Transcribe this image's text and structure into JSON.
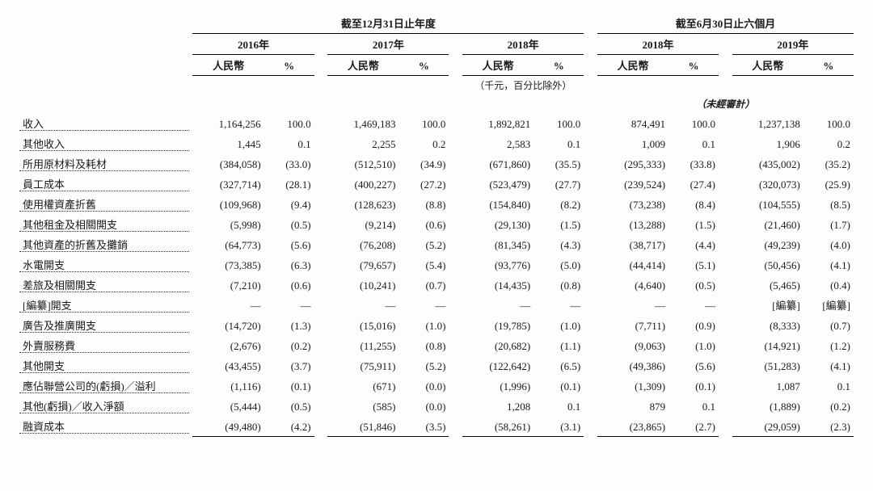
{
  "headers": {
    "period_annual": "截至12月31日止年度",
    "period_half": "截至6月30日止六個月",
    "y2016": "2016年",
    "y2017": "2017年",
    "y2018": "2018年",
    "y2018h": "2018年",
    "y2019h": "2019年",
    "rmb": "人民幣",
    "pct": "%",
    "unit_note": "（千元，百分比除外）",
    "unaudited": "（未經審計）"
  },
  "rows": [
    {
      "label": "收入",
      "bold": true,
      "underline": false,
      "v": [
        "1,164,256",
        "100.0",
        "1,469,183",
        "100.0",
        "1,892,821",
        "100.0",
        "874,491",
        "100.0",
        "1,237,138",
        "100.0"
      ]
    },
    {
      "label": "其他收入",
      "v": [
        "1,445",
        "0.1",
        "2,255",
        "0.2",
        "2,583",
        "0.1",
        "1,009",
        "0.1",
        "1,906",
        "0.2"
      ]
    },
    {
      "label": "所用原材料及耗材",
      "v": [
        "(384,058)",
        "(33.0)",
        "(512,510)",
        "(34.9)",
        "(671,860)",
        "(35.5)",
        "(295,333)",
        "(33.8)",
        "(435,002)",
        "(35.2)"
      ]
    },
    {
      "label": "員工成本",
      "v": [
        "(327,714)",
        "(28.1)",
        "(400,227)",
        "(27.2)",
        "(523,479)",
        "(27.7)",
        "(239,524)",
        "(27.4)",
        "(320,073)",
        "(25.9)"
      ]
    },
    {
      "label": "使用權資產折舊",
      "v": [
        "(109,968)",
        "(9.4)",
        "(128,623)",
        "(8.8)",
        "(154,840)",
        "(8.2)",
        "(73,238)",
        "(8.4)",
        "(104,555)",
        "(8.5)"
      ]
    },
    {
      "label": "其他租金及相關開支",
      "v": [
        "(5,998)",
        "(0.5)",
        "(9,214)",
        "(0.6)",
        "(29,130)",
        "(1.5)",
        "(13,288)",
        "(1.5)",
        "(21,460)",
        "(1.7)"
      ]
    },
    {
      "label": "其他資產的折舊及攤銷",
      "v": [
        "(64,773)",
        "(5.6)",
        "(76,208)",
        "(5.2)",
        "(81,345)",
        "(4.3)",
        "(38,717)",
        "(4.4)",
        "(49,239)",
        "(4.0)"
      ]
    },
    {
      "label": "水電開支",
      "v": [
        "(73,385)",
        "(6.3)",
        "(79,657)",
        "(5.4)",
        "(93,776)",
        "(5.0)",
        "(44,414)",
        "(5.1)",
        "(50,456)",
        "(4.1)"
      ]
    },
    {
      "label": "差旅及相關開支",
      "v": [
        "(7,210)",
        "(0.6)",
        "(10,241)",
        "(0.7)",
        "(14,435)",
        "(0.8)",
        "(4,640)",
        "(0.5)",
        "(5,465)",
        "(0.4)"
      ]
    },
    {
      "label": "[編纂]開支",
      "v": [
        "—",
        "—",
        "—",
        "—",
        "—",
        "—",
        "—",
        "—",
        "[編纂]",
        "[編纂]"
      ]
    },
    {
      "label": "廣告及推廣開支",
      "v": [
        "(14,720)",
        "(1.3)",
        "(15,016)",
        "(1.0)",
        "(19,785)",
        "(1.0)",
        "(7,711)",
        "(0.9)",
        "(8,333)",
        "(0.7)"
      ]
    },
    {
      "label": "外賣服務費",
      "v": [
        "(2,676)",
        "(0.2)",
        "(11,255)",
        "(0.8)",
        "(20,682)",
        "(1.1)",
        "(9,063)",
        "(1.0)",
        "(14,921)",
        "(1.2)"
      ]
    },
    {
      "label": "其他開支",
      "v": [
        "(43,455)",
        "(3.7)",
        "(75,911)",
        "(5.2)",
        "(122,642)",
        "(6.5)",
        "(49,386)",
        "(5.6)",
        "(51,283)",
        "(4.1)"
      ]
    },
    {
      "label": "應佔聯營公司的(虧損)／溢利",
      "v": [
        "(1,116)",
        "(0.1)",
        "(671)",
        "(0.0)",
        "(1,996)",
        "(0.1)",
        "(1,309)",
        "(0.1)",
        "1,087",
        "0.1"
      ]
    },
    {
      "label": "其他(虧損)／收入淨額",
      "v": [
        "(5,444)",
        "(0.5)",
        "(585)",
        "(0.0)",
        "1,208",
        "0.1",
        "879",
        "0.1",
        "(1,889)",
        "(0.2)"
      ]
    },
    {
      "label": "融資成本",
      "underline": true,
      "v": [
        "(49,480)",
        "(4.2)",
        "(51,846)",
        "(3.5)",
        "(58,261)",
        "(3.1)",
        "(23,865)",
        "(2.7)",
        "(29,059)",
        "(2.3)"
      ]
    }
  ]
}
